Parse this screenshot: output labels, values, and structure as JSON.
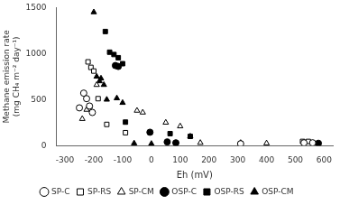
{
  "chart_data": {
    "type": "scatter",
    "xlabel": "Eh (mV)",
    "ylabel": "Methane emission rate\n(mg CH₄ m⁻² day⁻¹)",
    "xlim": [
      -330,
      630
    ],
    "ylim": [
      0,
      1500
    ],
    "xticks": [
      -300,
      -200,
      -100,
      0,
      100,
      200,
      300,
      400,
      500,
      600
    ],
    "yticks": [
      0,
      500,
      1000,
      1500
    ],
    "grid": false,
    "legend": "bottom",
    "series": [
      {
        "name": "SP-C",
        "marker": "circle",
        "color": "white",
        "x": [
          -250,
          -235,
          -225,
          -215,
          -205,
          310,
          530,
          560
        ],
        "y": [
          410,
          570,
          510,
          430,
          360,
          20,
          30,
          30
        ]
      },
      {
        "name": "SP-RS",
        "marker": "square",
        "color": "white",
        "x": [
          -220,
          -210,
          -200,
          -185,
          -155,
          -90,
          310,
          525,
          545
        ],
        "y": [
          910,
          850,
          810,
          510,
          230,
          140,
          20,
          45,
          45
        ]
      },
      {
        "name": "SP-CM",
        "marker": "triangle",
        "color": "white",
        "x": [
          -240,
          -225,
          -215,
          -190,
          -50,
          -30,
          50,
          100,
          170,
          310,
          400
        ],
        "y": [
          290,
          390,
          420,
          660,
          380,
          360,
          250,
          210,
          30,
          30,
          25
        ]
      },
      {
        "name": "OSP-C",
        "marker": "circle",
        "color": "black",
        "x": [
          -125,
          -115,
          -5,
          55,
          85,
          580
        ],
        "y": [
          870,
          860,
          145,
          40,
          30,
          25
        ]
      },
      {
        "name": "OSP-RS",
        "marker": "square",
        "color": "black",
        "x": [
          -160,
          -145,
          -130,
          -115,
          -100,
          -90,
          65,
          135
        ],
        "y": [
          1240,
          1015,
          990,
          955,
          890,
          255,
          130,
          100
        ]
      },
      {
        "name": "OSP-CM",
        "marker": "triangle",
        "color": "black",
        "x": [
          -200,
          -190,
          -180,
          -175,
          -165,
          -155,
          -120,
          -100,
          -60,
          0,
          135
        ],
        "y": [
          1450,
          750,
          700,
          730,
          660,
          500,
          515,
          465,
          25,
          20,
          100
        ]
      }
    ]
  }
}
